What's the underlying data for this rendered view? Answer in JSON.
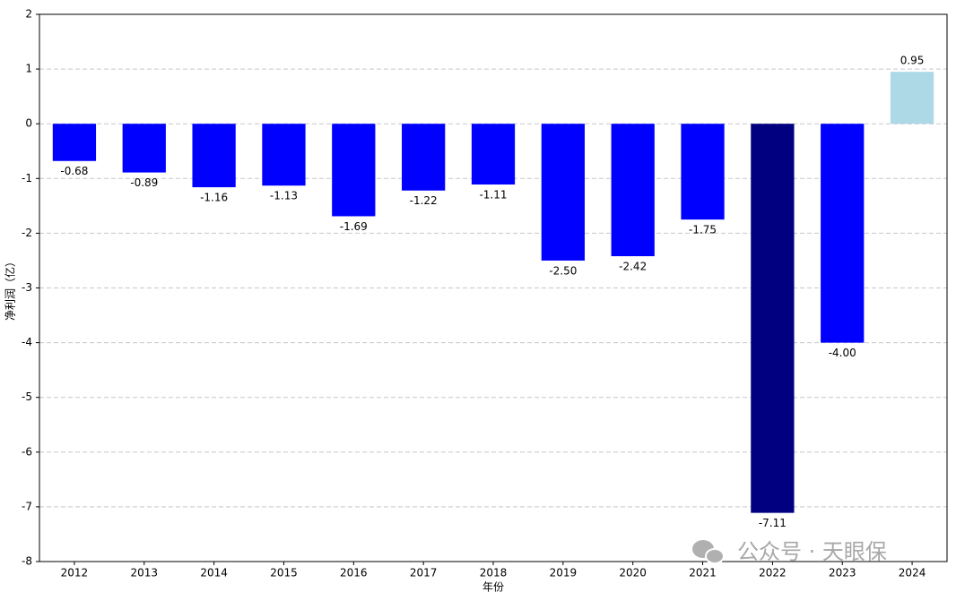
{
  "chart_data": {
    "type": "bar",
    "y_label": "净利润（亿）",
    "x_label": "年份",
    "categories": [
      "2012",
      "2013",
      "2014",
      "2015",
      "2016",
      "2017",
      "2018",
      "2019",
      "2020",
      "2021",
      "2022",
      "2023",
      "2024"
    ],
    "values": [
      -0.68,
      -0.89,
      -1.16,
      -1.13,
      -1.69,
      -1.22,
      -1.11,
      -2.5,
      -2.42,
      -1.75,
      -7.11,
      -4.0,
      0.95
    ],
    "value_labels": [
      "-0.68",
      "-0.89",
      "-1.16",
      "-1.13",
      "-1.69",
      "-1.22",
      "-1.11",
      "-2.50",
      "-2.42",
      "-1.75",
      "-7.11",
      "-4.00",
      "0.95"
    ],
    "colors": [
      "#0000ff",
      "#0000ff",
      "#0000ff",
      "#0000ff",
      "#0000ff",
      "#0000ff",
      "#0000ff",
      "#0000ff",
      "#0000ff",
      "#0000ff",
      "#000080",
      "#0000ff",
      "#add8e6"
    ],
    "ylim": [
      -8,
      2
    ],
    "yticks": [
      -8,
      -7,
      -6,
      -5,
      -4,
      -3,
      -2,
      -1,
      0,
      1,
      2
    ],
    "grid": true,
    "watermark": "公众号 · 天眼保"
  }
}
